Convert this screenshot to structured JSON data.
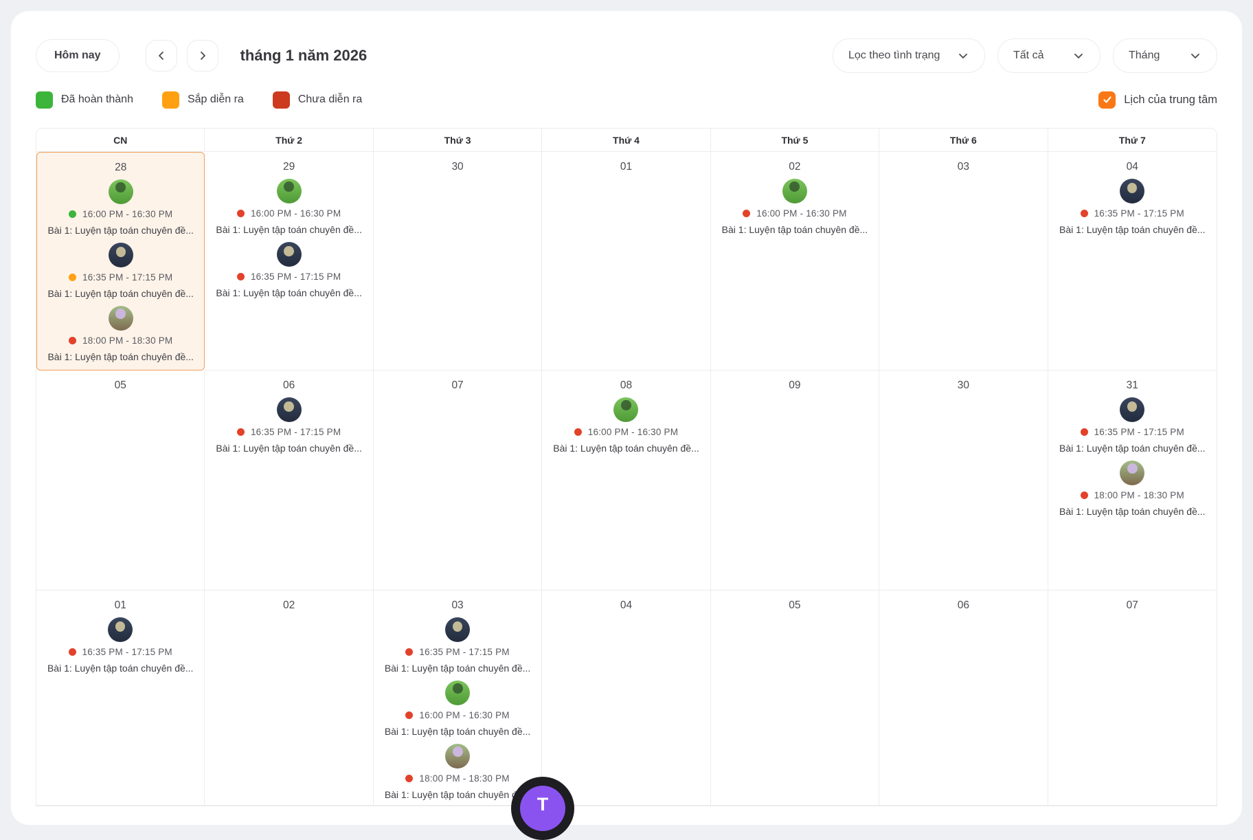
{
  "toolbar": {
    "today_label": "Hôm nay",
    "title": "tháng 1 năm 2026",
    "filters": [
      {
        "label": "Lọc theo tình trạng"
      },
      {
        "label": "Tất cả"
      },
      {
        "label": "Tháng"
      }
    ]
  },
  "legend": {
    "items": [
      {
        "label": "Đã hoàn thành",
        "color": "#3cb53a",
        "status": "completed"
      },
      {
        "label": "Sắp diễn ra",
        "color": "#ffa013",
        "status": "upcoming"
      },
      {
        "label": "Chưa diễn ra",
        "color": "#cc3a1f",
        "status": "not_started"
      }
    ],
    "center_calendar": {
      "label": "Lịch của trung tâm",
      "checked": true,
      "color": "#f97815"
    }
  },
  "calendar": {
    "day_headers": [
      "CN",
      "Thứ 2",
      "Thứ 3",
      "Thứ 4",
      "Thứ 5",
      "Thứ 6",
      "Thứ 7"
    ],
    "weeks": [
      [
        {
          "day": "28",
          "selected": true,
          "events": [
            {
              "status": "completed",
              "color": "#3cb53a",
              "time": "16:00 PM - 16:30 PM",
              "title": "Bài 1: Luyện tập toán chuyên đề...",
              "avatar": "green"
            },
            {
              "status": "upcoming",
              "color": "#ffa013",
              "time": "16:35 PM - 17:15 PM",
              "title": "Bài 1: Luyện tập toán chuyên đề...",
              "avatar": "dark"
            },
            {
              "status": "not_started",
              "color": "#e2422a",
              "time": "18:00 PM - 18:30 PM",
              "title": "Bài 1: Luyện tập toán chuyên đề...",
              "avatar": "purple"
            }
          ]
        },
        {
          "day": "29",
          "selected": false,
          "events": [
            {
              "status": "not_started",
              "color": "#e2422a",
              "time": "16:00 PM - 16:30 PM",
              "title": "Bài 1: Luyện tập toán chuyên đề...",
              "avatar": "green"
            },
            {
              "status": "not_started",
              "color": "#e2422a",
              "time": "16:35 PM - 17:15 PM",
              "title": "Bài 1: Luyện tập toán chuyên đề...",
              "avatar": "dark"
            }
          ]
        },
        {
          "day": "30",
          "selected": false,
          "events": []
        },
        {
          "day": "01",
          "selected": false,
          "events": []
        },
        {
          "day": "02",
          "selected": false,
          "events": [
            {
              "status": "not_started",
              "color": "#e2422a",
              "time": "16:00 PM - 16:30 PM",
              "title": "Bài 1: Luyện tập toán chuyên đề...",
              "avatar": "green"
            }
          ]
        },
        {
          "day": "03",
          "selected": false,
          "events": []
        },
        {
          "day": "04",
          "selected": false,
          "events": [
            {
              "status": "not_started",
              "color": "#e2422a",
              "time": "16:35 PM - 17:15 PM",
              "title": "Bài 1: Luyện tập toán chuyên đề...",
              "avatar": "dark"
            }
          ]
        }
      ],
      [
        {
          "day": "05",
          "selected": false,
          "events": []
        },
        {
          "day": "06",
          "selected": false,
          "events": [
            {
              "status": "not_started",
              "color": "#e2422a",
              "time": "16:35 PM - 17:15 PM",
              "title": "Bài 1: Luyện tập toán chuyên đề...",
              "avatar": "dark"
            }
          ]
        },
        {
          "day": "07",
          "selected": false,
          "events": []
        },
        {
          "day": "08",
          "selected": false,
          "events": [
            {
              "status": "not_started",
              "color": "#e2422a",
              "time": "16:00 PM - 16:30 PM",
              "title": "Bài 1: Luyện tập toán chuyên đề...",
              "avatar": "green"
            }
          ]
        },
        {
          "day": "09",
          "selected": false,
          "events": []
        },
        {
          "day": "30",
          "selected": false,
          "events": []
        },
        {
          "day": "31",
          "selected": false,
          "events": [
            {
              "status": "not_started",
              "color": "#e2422a",
              "time": "16:35 PM - 17:15 PM",
              "title": "Bài 1: Luyện tập toán chuyên đề...",
              "avatar": "dark"
            },
            {
              "status": "not_started",
              "color": "#e2422a",
              "time": "18:00 PM - 18:30 PM",
              "title": "Bài 1: Luyện tập toán chuyên đề...",
              "avatar": "purple"
            }
          ]
        }
      ],
      [
        {
          "day": "01",
          "selected": false,
          "events": [
            {
              "status": "not_started",
              "color": "#e2422a",
              "time": "16:35 PM - 17:15 PM",
              "title": "Bài 1: Luyện tập toán chuyên đề...",
              "avatar": "dark"
            }
          ]
        },
        {
          "day": "02",
          "selected": false,
          "events": []
        },
        {
          "day": "03",
          "selected": false,
          "events": [
            {
              "status": "not_started",
              "color": "#e2422a",
              "time": "16:35 PM - 17:15 PM",
              "title": "Bài 1: Luyện tập toán chuyên đề...",
              "avatar": "dark"
            },
            {
              "status": "not_started",
              "color": "#e2422a",
              "time": "16:00 PM - 16:30 PM",
              "title": "Bài 1: Luyện tập toán chuyên đề...",
              "avatar": "green"
            },
            {
              "status": "not_started",
              "color": "#e2422a",
              "time": "18:00 PM - 18:30 PM",
              "title": "Bài 1: Luyện tập toán chuyên đề...",
              "avatar": "purple"
            }
          ]
        },
        {
          "day": "04",
          "selected": false,
          "events": []
        },
        {
          "day": "05",
          "selected": false,
          "events": []
        },
        {
          "day": "06",
          "selected": false,
          "events": []
        },
        {
          "day": "07",
          "selected": false,
          "events": []
        }
      ]
    ]
  },
  "fab": {
    "label": "T",
    "color": "#8a53f0"
  }
}
